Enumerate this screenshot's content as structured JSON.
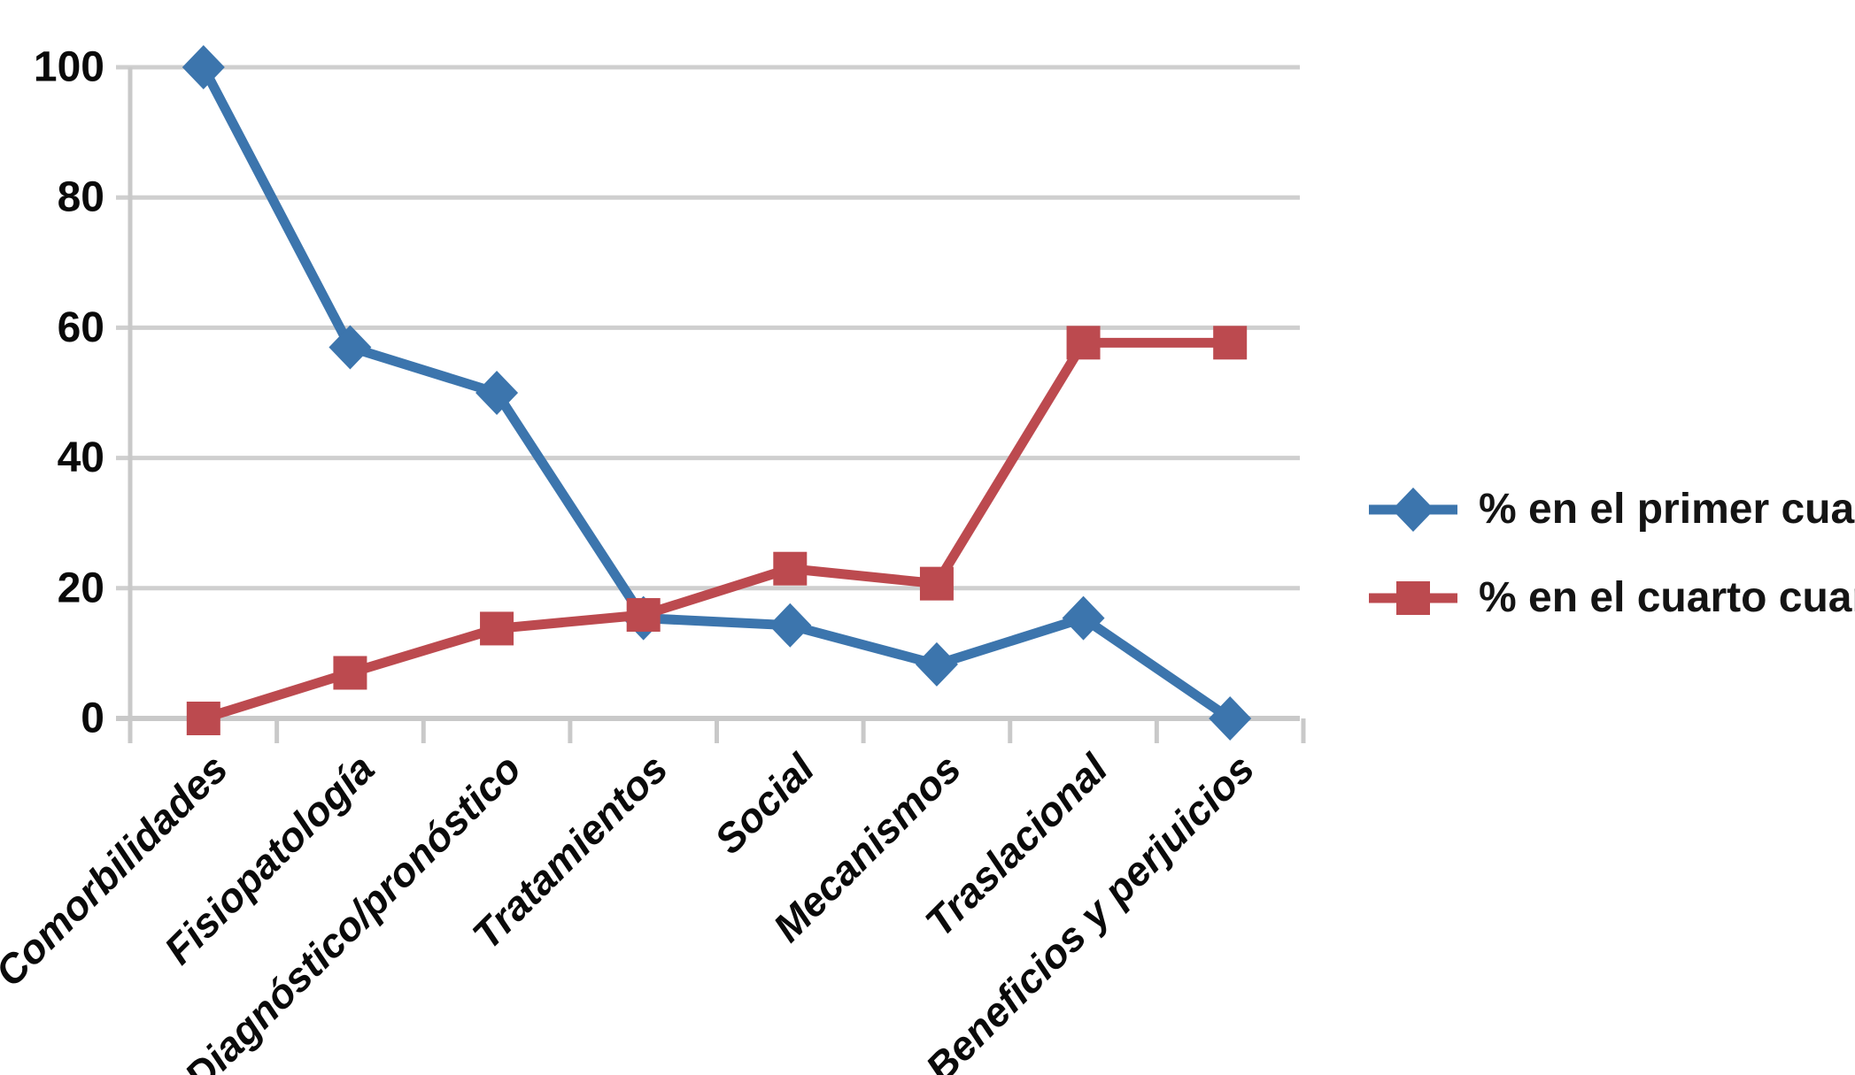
{
  "chart_data": {
    "type": "line",
    "title": "",
    "xlabel": "",
    "ylabel": "",
    "categories": [
      "Comorbilidades",
      "Fisiopatología",
      "Diagnóstico/pronóstico",
      "Tratamientos",
      "Social",
      "Mecanismos",
      "Traslacional",
      "Beneficios y perjuicios"
    ],
    "series": [
      {
        "name": "% en el primer cuartil",
        "marker": "diamond",
        "color": "#3C75AD",
        "values": [
          100,
          57,
          50,
          15.4,
          14.3,
          8.3,
          15.4,
          0
        ]
      },
      {
        "name": "% en el cuarto cuartil",
        "marker": "square",
        "color": "#BC4A4F",
        "values": [
          0,
          7,
          13.8,
          15.9,
          23,
          20.7,
          57.7,
          57.7
        ]
      }
    ],
    "y_ticks": [
      0,
      20,
      40,
      60,
      80,
      100
    ],
    "ylim": [
      0,
      100
    ],
    "grid": "horizontal",
    "grid_color": "#CFCFCF",
    "axis_color": "#C9C9C9",
    "text_color": "#0A0A0A",
    "legend_position": "right"
  }
}
